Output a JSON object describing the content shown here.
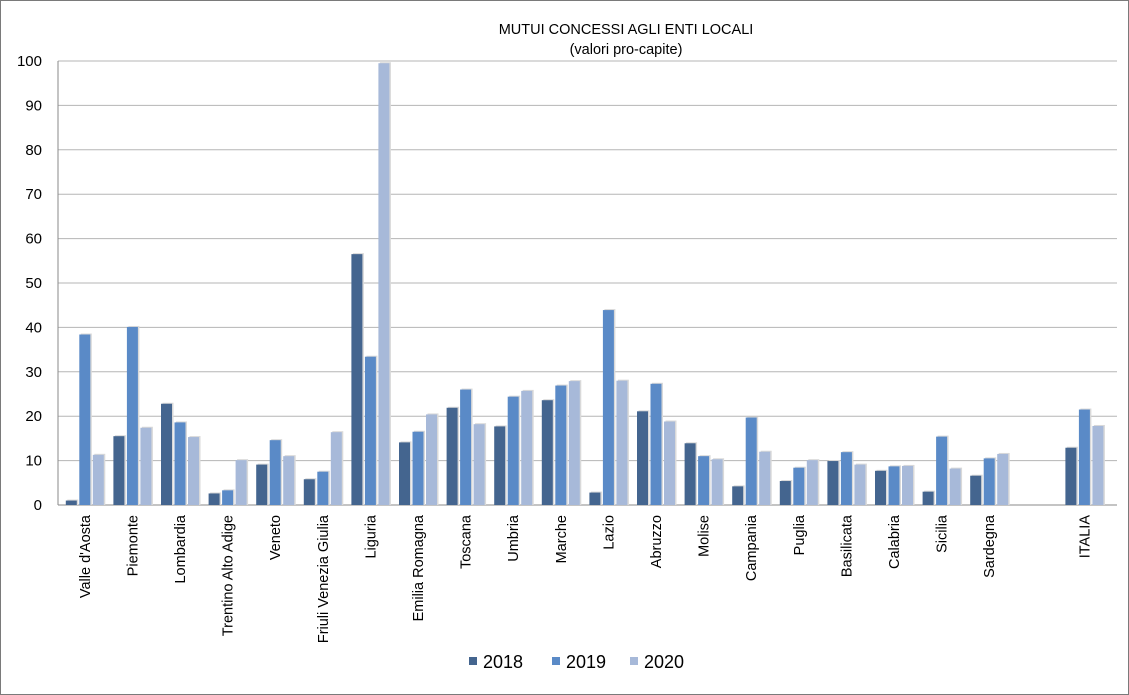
{
  "chart_data": {
    "type": "bar",
    "title": "MUTUI CONCESSI AGLI ENTI LOCALI",
    "subtitle": "(valori pro-capite)",
    "xlabel": "",
    "ylabel": "",
    "ylim": [
      0,
      100
    ],
    "yticks": [
      "0",
      "10",
      "20",
      "30",
      "40",
      "50",
      "60",
      "70",
      "80",
      "90",
      "100"
    ],
    "grid": true,
    "legend_position": "bottom",
    "categories": [
      "Valle d'Aosta",
      "Piemonte",
      "Lombardia",
      "Trentino Alto Adige",
      "Veneto",
      "Friuli Venezia Giulia",
      "Liguria",
      "Emilia Romagna",
      "Toscana",
      "Umbria",
      "Marche",
      "Lazio",
      "Abruzzo",
      "Molise",
      "Campania",
      "Puglia",
      "Basilicata",
      "Calabria",
      "Sicilia",
      "Sardegna",
      "ITALIA"
    ],
    "series": [
      {
        "name": "2018",
        "color": "#44658f",
        "values": [
          1.0,
          15.5,
          22.8,
          2.6,
          9.1,
          5.8,
          56.5,
          14.1,
          21.9,
          17.7,
          23.6,
          2.8,
          21.1,
          13.9,
          4.2,
          5.4,
          9.9,
          7.7,
          3.0,
          6.6,
          12.9
        ]
      },
      {
        "name": "2019",
        "color": "#5a8ac7",
        "values": [
          38.4,
          40.1,
          18.6,
          3.3,
          14.6,
          7.5,
          33.4,
          16.5,
          26.0,
          24.4,
          26.9,
          43.9,
          27.3,
          11.0,
          19.7,
          8.4,
          11.9,
          8.7,
          15.4,
          10.5,
          21.5
        ]
      },
      {
        "name": "2020",
        "color": "#a7b9d9",
        "values": [
          11.3,
          17.4,
          15.3,
          10.1,
          11.0,
          16.4,
          99.5,
          20.4,
          18.2,
          25.7,
          27.9,
          28.0,
          18.8,
          10.3,
          12.0,
          10.1,
          9.1,
          8.8,
          8.2,
          11.5,
          17.8
        ]
      }
    ]
  }
}
